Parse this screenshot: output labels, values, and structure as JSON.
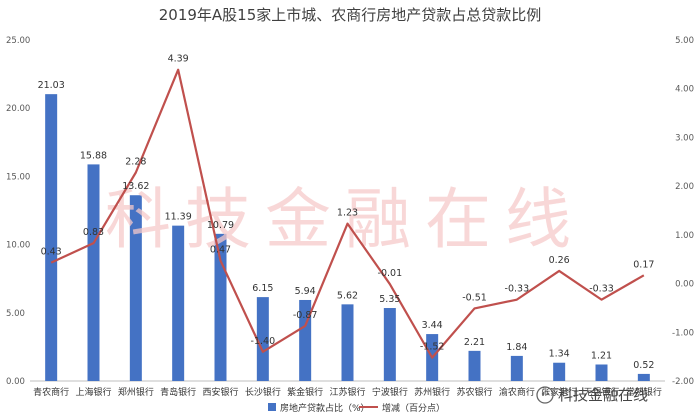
{
  "chart_data": {
    "type": "bar+line",
    "title": "2019年A股15家上市城、农商行房地产贷款占总贷款比例",
    "categories": [
      "青农商行",
      "上海银行",
      "郑州银行",
      "青岛银行",
      "西安银行",
      "长沙银行",
      "紫金银行",
      "江苏银行",
      "宁波银行",
      "苏州银行",
      "苏农银行",
      "渝农商行",
      "张家港行",
      "无锡银行",
      "常熟银行"
    ],
    "series": [
      {
        "name": "房地产贷款占比（%）",
        "type": "bar",
        "axis": "left",
        "color": "#4472c4",
        "values": [
          21.03,
          15.88,
          13.62,
          11.39,
          10.79,
          6.15,
          5.94,
          5.62,
          5.35,
          3.44,
          2.21,
          1.84,
          1.34,
          1.21,
          0.52
        ],
        "labels": [
          "21.03",
          "15.88",
          "13.62",
          "11.39",
          "10.79",
          "6.15",
          "5.94",
          "5.62",
          "5.35",
          "3.44",
          "2.21",
          "1.84",
          "1.34",
          "1.21",
          "0.52"
        ]
      },
      {
        "name": "增减（百分点）",
        "type": "line",
        "axis": "right",
        "color": "#c0504d",
        "values": [
          0.43,
          0.83,
          2.28,
          4.39,
          0.47,
          -1.4,
          -0.87,
          1.23,
          -0.01,
          -1.52,
          -0.51,
          -0.33,
          0.26,
          -0.33,
          0.17
        ],
        "labels": [
          "0.43",
          "0.83",
          "2.28",
          "4.39",
          "0.47",
          "-1.40",
          "-0.87",
          "1.23",
          "-0.01",
          "-1.52",
          "-0.51",
          "-0.33",
          "0.26",
          "-0.33",
          "0.17"
        ]
      }
    ],
    "y_left": {
      "min": 0,
      "max": 25,
      "ticks": [
        "0.00",
        "5.00",
        "10.00",
        "15.00",
        "20.00",
        "25.00"
      ]
    },
    "y_right": {
      "min": -2,
      "max": 5,
      "ticks": [
        "-2.00",
        "-1.00",
        "0.00",
        "1.00",
        "2.00",
        "3.00",
        "4.00",
        "5.00"
      ]
    },
    "legend_position": "bottom-center",
    "grid": false
  },
  "watermark": "科技金融在线",
  "logo_text": "科技金融在线"
}
